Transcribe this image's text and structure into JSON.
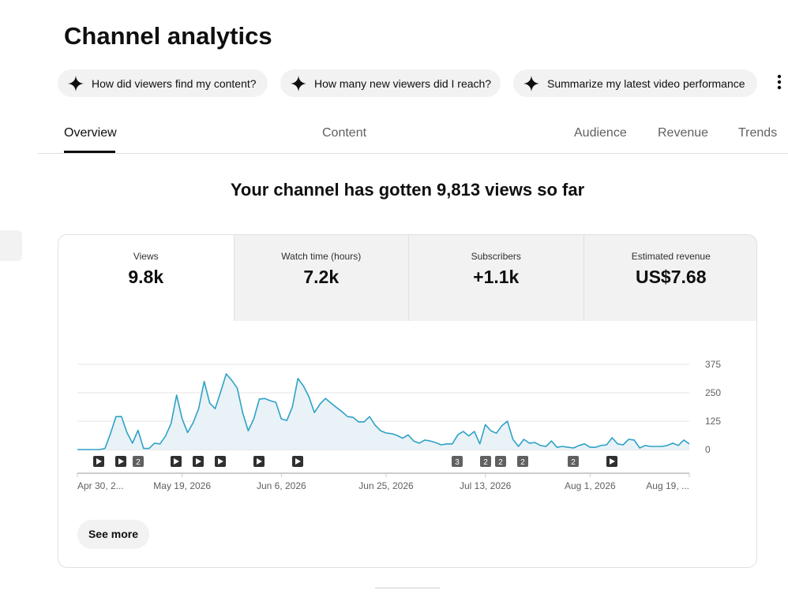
{
  "header": {
    "title": "Channel analytics"
  },
  "chips": [
    "How did viewers find my content?",
    "How many new viewers did I reach?",
    "Summarize my latest video performance"
  ],
  "tabs": [
    "Overview",
    "Content",
    "Audience",
    "Revenue",
    "Trends"
  ],
  "headline": "Your channel has gotten 9,813 views so far",
  "metrics": [
    {
      "label": "Views",
      "value": "9.8k"
    },
    {
      "label": "Watch time (hours)",
      "value": "7.2k"
    },
    {
      "label": "Subscribers",
      "value": "+1.1k"
    },
    {
      "label": "Estimated revenue",
      "value": "US$7.68"
    }
  ],
  "chart_data": {
    "type": "line",
    "categories": [
      "Apr 30, 2...",
      null,
      null,
      null,
      null,
      null,
      null,
      null,
      null,
      null,
      null,
      null,
      null,
      null,
      null,
      null,
      null,
      null,
      null,
      "May 19, 2026",
      null,
      null,
      null,
      null,
      null,
      null,
      null,
      null,
      null,
      null,
      null,
      null,
      null,
      null,
      null,
      null,
      null,
      "Jun 6, 2026",
      null,
      null,
      null,
      null,
      null,
      null,
      null,
      null,
      null,
      null,
      null,
      null,
      null,
      null,
      null,
      null,
      null,
      null,
      "Jun 25, 2026",
      null,
      null,
      null,
      null,
      null,
      null,
      null,
      null,
      null,
      null,
      null,
      null,
      null,
      null,
      null,
      null,
      null,
      "Jul 13, 2026",
      null,
      null,
      null,
      null,
      null,
      null,
      null,
      null,
      null,
      null,
      null,
      null,
      null,
      null,
      null,
      null,
      null,
      null,
      "Aug 1, 2026",
      null,
      null,
      null,
      null,
      null,
      null,
      null,
      null,
      null,
      null,
      null,
      null,
      null,
      null,
      null,
      null,
      null,
      "Aug 19, ..."
    ],
    "values": [
      0,
      0,
      0,
      0,
      0,
      5,
      70,
      145,
      145,
      75,
      28,
      85,
      5,
      5,
      28,
      25,
      60,
      115,
      240,
      135,
      75,
      118,
      180,
      300,
      205,
      180,
      255,
      333,
      305,
      270,
      160,
      83,
      135,
      222,
      225,
      215,
      208,
      135,
      128,
      188,
      313,
      280,
      233,
      163,
      200,
      225,
      205,
      185,
      167,
      145,
      142,
      122,
      122,
      145,
      108,
      83,
      73,
      70,
      62,
      50,
      65,
      38,
      28,
      42,
      38,
      31,
      21,
      25,
      25,
      65,
      80,
      60,
      80,
      25,
      110,
      83,
      72,
      105,
      125,
      45,
      14,
      45,
      28,
      31,
      18,
      14,
      38,
      10,
      14,
      10,
      7,
      18,
      25,
      10,
      10,
      18,
      21,
      52,
      25,
      21,
      45,
      42,
      7,
      18,
      14,
      14,
      14,
      18,
      28,
      18,
      42,
      25
    ],
    "color": "#2ea2c7",
    "fill_color": "#e9f2f6",
    "ylim": [
      0,
      375
    ],
    "yticks": [
      0,
      125,
      250,
      375
    ],
    "grid": true,
    "annotations": [
      "2",
      "3",
      "2",
      "2",
      "2",
      "2"
    ]
  },
  "see_more": "See more"
}
